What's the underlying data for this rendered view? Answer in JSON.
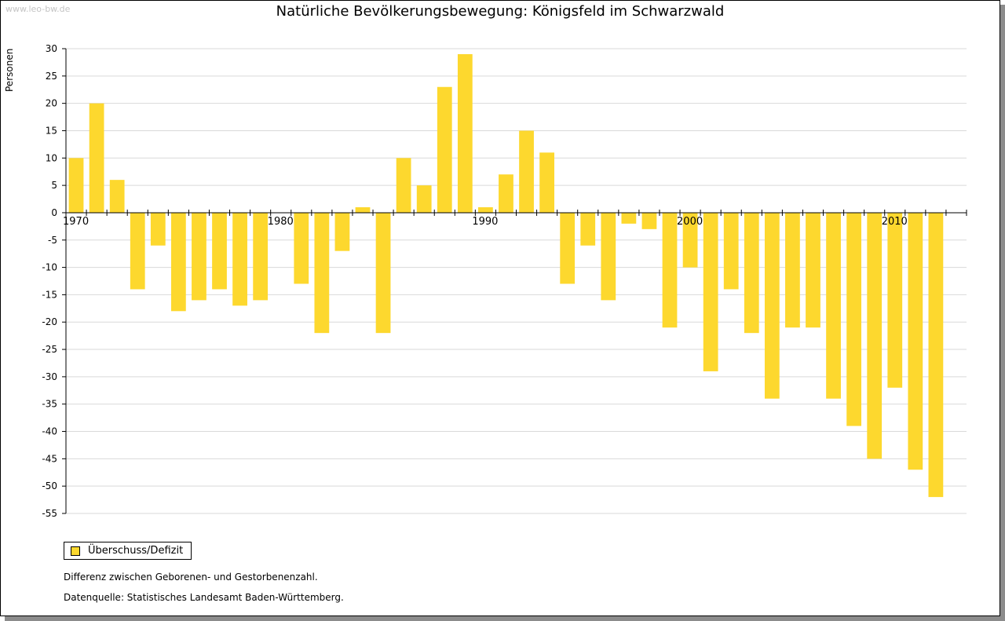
{
  "watermark": "www.leo-bw.de",
  "colors": {
    "bar": "#fdd82e",
    "grid": "#d9d9d9",
    "axis": "#000000"
  },
  "legend": {
    "label": "Überschuss/Defizit"
  },
  "notes": {
    "line1": "Differenz zwischen Geborenen- und Gestorbenenzahl.",
    "line2": "Datenquelle: Statistisches Landesamt Baden-Württemberg."
  },
  "chart_data": {
    "type": "bar",
    "title": "Natürliche Bevölkerungsbewegung: Königsfeld im Schwarzwald",
    "ylabel": "Personen",
    "xlabel": "",
    "ylim": [
      -55,
      30
    ],
    "ytick_step": 5,
    "grid": true,
    "legend_position": "bottom-left",
    "x_tick_labels": [
      "1970",
      "1980",
      "1990",
      "2000",
      "2010"
    ],
    "series": [
      {
        "name": "Überschuss/Defizit",
        "categories": [
          1970,
          1971,
          1972,
          1973,
          1974,
          1975,
          1976,
          1977,
          1978,
          1979,
          1980,
          1981,
          1982,
          1983,
          1984,
          1985,
          1986,
          1987,
          1988,
          1989,
          1990,
          1991,
          1992,
          1993,
          1994,
          1995,
          1996,
          1997,
          1998,
          1999,
          2000,
          2001,
          2002,
          2003,
          2004,
          2005,
          2006,
          2007,
          2008,
          2009,
          2010,
          2011,
          2012,
          2013
        ],
        "values": [
          10,
          20,
          6,
          -14,
          -6,
          -18,
          -16,
          -14,
          -17,
          -16,
          0,
          -13,
          -22,
          -7,
          1,
          -22,
          10,
          5,
          23,
          29,
          1,
          7,
          15,
          11,
          -13,
          -6,
          -16,
          -2,
          -3,
          -21,
          -10,
          -29,
          -14,
          -22,
          -34,
          -21,
          -21,
          -34,
          -39,
          -45,
          -32,
          -47,
          -52,
          0
        ]
      }
    ]
  }
}
